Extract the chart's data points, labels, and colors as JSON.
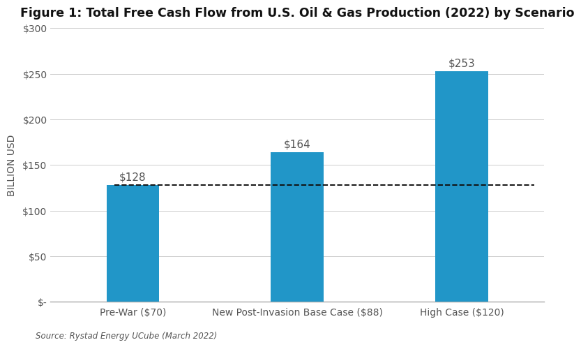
{
  "title": "Figure 1: Total Free Cash Flow from U.S. Oil & Gas Production (2022) by Scenario",
  "categories": [
    "Pre-War ($70)",
    "New Post-Invasion Base Case ($88)",
    "High Case ($120)"
  ],
  "values": [
    128,
    164,
    253
  ],
  "bar_labels": [
    "$128",
    "$164",
    "$253"
  ],
  "bar_color": "#2196C8",
  "ylabel": "BILLION USD",
  "ylim": [
    0,
    300
  ],
  "yticks": [
    0,
    50,
    100,
    150,
    200,
    250,
    300
  ],
  "ytick_labels": [
    "$-",
    "$50",
    "$100",
    "$150",
    "$200",
    "$250",
    "$300"
  ],
  "dashed_line_y": 128,
  "dashed_line_color": "#111111",
  "source_text": "Source: Rystad Energy UCube (March 2022)",
  "background_color": "#ffffff",
  "grid_color": "#cccccc",
  "bar_label_color": "#555555",
  "title_fontsize": 12.5,
  "ylabel_fontsize": 10,
  "tick_fontsize": 10,
  "source_fontsize": 8.5,
  "bar_label_fontsize": 11,
  "bar_width": 0.32
}
